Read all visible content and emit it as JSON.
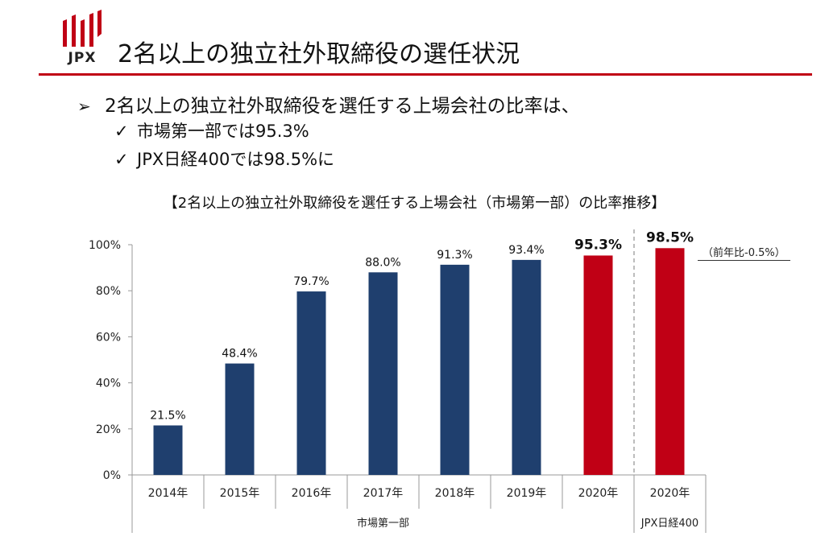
{
  "logo": {
    "text": "JPX"
  },
  "header": {
    "title": "2名以上の独立社外取締役の選任状況"
  },
  "bullets": {
    "main": "2名以上の独立社外取締役を選任する上場会社の比率は、",
    "sub": [
      "市場第一部では95.3%",
      "JPX日経400では98.5%に"
    ]
  },
  "colors": {
    "accent": "#c00015",
    "navy": "#1f3f6e",
    "red": "#c00015"
  },
  "annotation": "（前年比-0.5%）",
  "chart_data": {
    "type": "bar",
    "title": "【2名以上の独立社外取締役を選任する上場会社（市場第一部）の比率推移】",
    "ylim": [
      0,
      100
    ],
    "yticks": [
      "0%",
      "20%",
      "40%",
      "60%",
      "80%",
      "100%"
    ],
    "categories": [
      "2014年",
      "2015年",
      "2016年",
      "2017年",
      "2018年",
      "2019年",
      "2020年",
      "2020年"
    ],
    "values": [
      21.5,
      48.4,
      79.7,
      88.0,
      91.3,
      93.4,
      95.3,
      98.5
    ],
    "value_labels": [
      "21.5%",
      "48.4%",
      "79.7%",
      "88.0%",
      "91.3%",
      "93.4%",
      "95.3%",
      "98.5%"
    ],
    "highlight": [
      false,
      false,
      false,
      false,
      false,
      false,
      true,
      true
    ],
    "groups": [
      {
        "label": "市場第一部",
        "count": 7
      },
      {
        "label": "JPX日経400",
        "count": 1
      }
    ],
    "grid": false
  }
}
